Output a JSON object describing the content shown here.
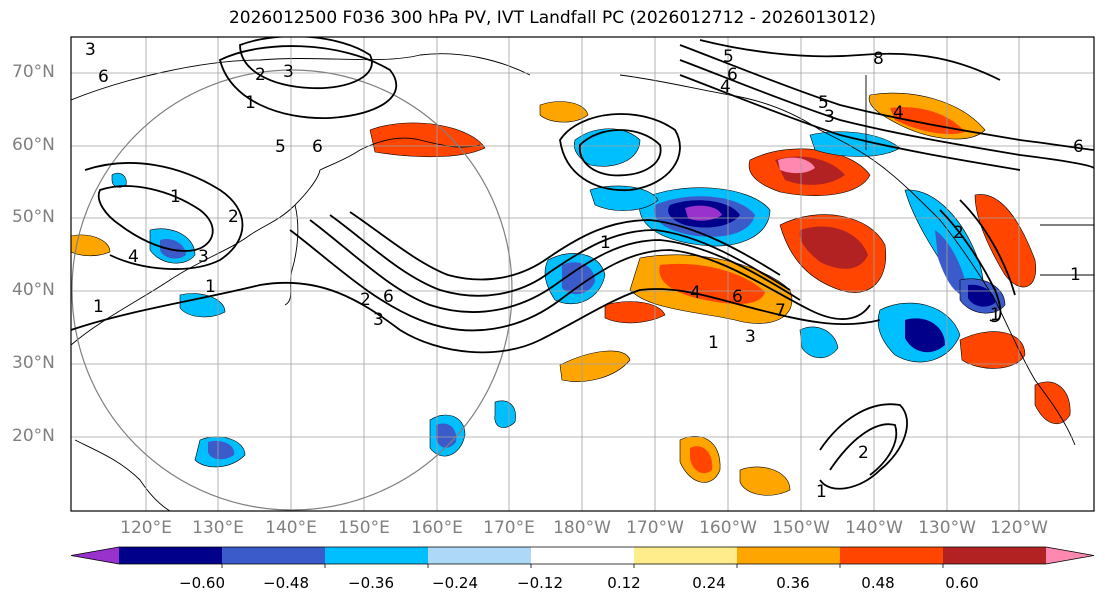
{
  "title": "2026012500 F036 300 hPa PV, IVT Landfall PC (2026012712 - 2026013012)",
  "lat_labels": [
    "70°N",
    "60°N",
    "50°N",
    "40°N",
    "30°N",
    "20°N"
  ],
  "lon_labels": [
    "120°E",
    "130°E",
    "140°E",
    "150°E",
    "160°E",
    "170°E",
    "180°W",
    "170°W",
    "160°W",
    "150°W",
    "140°W",
    "130°W",
    "120°W"
  ],
  "colorbar": {
    "colors": [
      "#9932CC",
      "#00008B",
      "#3B5BCB",
      "#00BFFF",
      "#ADD8F7",
      "#FFFFFF",
      "#FFEC8B",
      "#FFA500",
      "#FF4500",
      "#B22222",
      "#FF88B0"
    ],
    "tick_labels": [
      "−0.60",
      "−0.48",
      "−0.36",
      "−0.24",
      "−0.12",
      "0.12",
      "0.24",
      "0.36",
      "0.48",
      "0.60"
    ]
  },
  "contour_labels": [
    "3",
    "6",
    "2",
    "3",
    "1",
    "5",
    "6",
    "1",
    "2",
    "4",
    "1",
    "3",
    "1",
    "2",
    "6",
    "3",
    "1",
    "4",
    "6",
    "7",
    "3",
    "1",
    "5",
    "6",
    "4",
    "8",
    "5",
    "3",
    "4",
    "6",
    "2",
    "1",
    "1",
    "2",
    "1"
  ]
}
